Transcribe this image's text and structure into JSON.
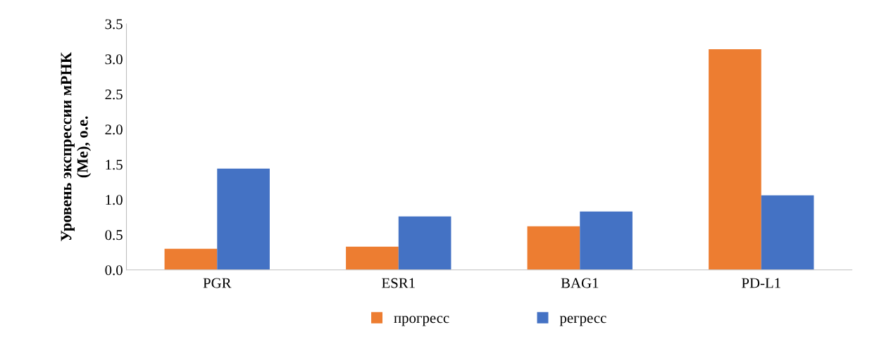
{
  "chart_data": {
    "type": "bar",
    "ylabel": "Уровень экспрессии мРНК\n(Me), о.е.",
    "categories": [
      "PGR",
      "ESR1",
      "BAG1",
      "PD-L1"
    ],
    "series": [
      {
        "name": "прогресс",
        "color": "#ed7d31",
        "values": [
          0.3,
          0.33,
          0.62,
          3.14
        ]
      },
      {
        "name": "регресс",
        "color": "#4472c4",
        "values": [
          1.44,
          0.76,
          0.83,
          1.06
        ]
      }
    ],
    "ylim": [
      0,
      3.5
    ],
    "yticks": [
      {
        "value": 0,
        "label": "0.0"
      },
      {
        "value": 0.5,
        "label": "0.5"
      },
      {
        "value": 1,
        "label": "1.0"
      },
      {
        "value": 1.5,
        "label": "1.5"
      },
      {
        "value": 2,
        "label": "2.0"
      },
      {
        "value": 2.5,
        "label": "2.5"
      },
      {
        "value": 3,
        "label": "3.0"
      },
      {
        "value": 3.5,
        "label": "3.5"
      }
    ],
    "grid": false,
    "legend": "bottom"
  }
}
